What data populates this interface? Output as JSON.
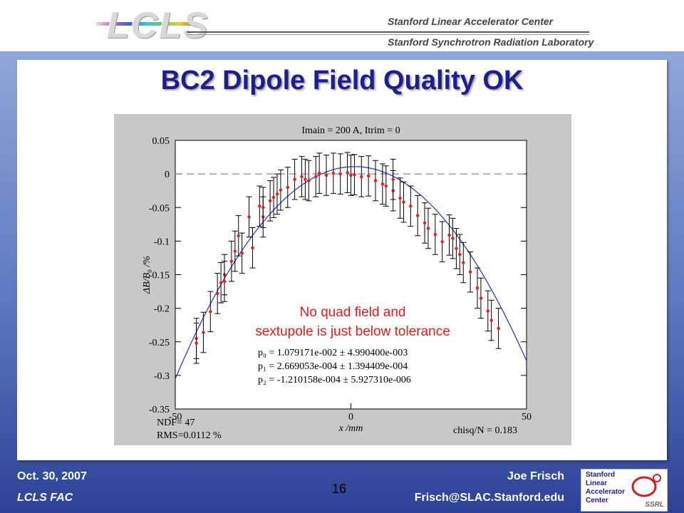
{
  "header": {
    "logo_text": "LCLS",
    "org_line1": "Stanford Linear Accelerator Center",
    "org_line2": "Stanford Synchrotron Radiation Laboratory"
  },
  "slide": {
    "title": "BC2 Dipole Field Quality OK",
    "annotation_line1": "No quad field and",
    "annotation_line2": "sextupole is just below tolerance",
    "fit_p0": "p₀ = 1.079171e-002 ± 4.990400e-003",
    "fit_p1": "p₁ = 2.669053e-004 ± 1.394409e-004",
    "fit_p2": "p₂ = -1.210158e-004 ± 5.927310e-006",
    "ndf": "NDF=   47",
    "rms": "RMS=0.0112 %",
    "chisq": "chisq/N = 0.183"
  },
  "footer": {
    "date": "Oct. 30, 2007",
    "event": "LCLS FAC",
    "author": "Joe Frisch",
    "email": "Frisch@SLAC.Stanford.edu",
    "page": "16"
  },
  "logo_slac": {
    "l1": "Stanford",
    "l2": "Linear",
    "l3": "Accelerator",
    "l4": "Center",
    "ssrl": "SSRL"
  },
  "colors": {
    "title": "#1e1e8c",
    "fit_curve": "#2030c0",
    "points": "#e02020",
    "annotation": "#e02020"
  },
  "chart_data": {
    "type": "scatter",
    "title": "Imain = 200 A, Itrim = 0",
    "xlabel": "x /mm",
    "ylabel": "ΔB/B₀ /%",
    "xlim": [
      -50,
      50
    ],
    "ylim": [
      -0.35,
      0.05
    ],
    "x_ticks": [
      -50,
      0,
      50
    ],
    "y_ticks": [
      0.05,
      0,
      -0.05,
      -0.1,
      -0.15,
      -0.2,
      -0.25,
      -0.3,
      -0.35
    ],
    "x_tick_labels": [
      "-50",
      "0",
      "50"
    ],
    "y_tick_labels": [
      "0.05",
      "0",
      "-0.05",
      "-0.1",
      "-0.15",
      "-0.2",
      "-0.25",
      "-0.3",
      "-0.35"
    ],
    "reference_line_y": 0,
    "error_bar": 0.03,
    "fit": {
      "p0": 0.01079171,
      "p1": 0.0002669053,
      "p2": -0.0001210158
    },
    "x": [
      -44,
      -44,
      -42,
      -40,
      -38,
      -37,
      -36,
      -36,
      -34,
      -33,
      -32,
      -31,
      -29,
      -28,
      -26,
      -25,
      -25,
      -23,
      -22,
      -21,
      -20,
      -18,
      -16,
      -14,
      -13,
      -12,
      -10,
      -9,
      -7,
      -5,
      -3,
      -1,
      0,
      1,
      3,
      5,
      7,
      9,
      10,
      12,
      12,
      14,
      15,
      17,
      19,
      21,
      22,
      24,
      26,
      28,
      29,
      30,
      31,
      32,
      34,
      36,
      37,
      39,
      40,
      42
    ],
    "y": [
      -0.245,
      -0.252,
      -0.236,
      -0.205,
      -0.178,
      -0.162,
      -0.15,
      -0.16,
      -0.13,
      -0.115,
      -0.092,
      -0.118,
      -0.064,
      -0.11,
      -0.048,
      -0.064,
      -0.05,
      -0.04,
      -0.035,
      -0.03,
      -0.024,
      -0.02,
      -0.008,
      -0.004,
      -0.008,
      -0.01,
      -0.004,
      0.001,
      -0.002,
      0.001,
      0,
      0.002,
      -0.002,
      -0.001,
      -0.004,
      -0.003,
      -0.01,
      -0.015,
      -0.018,
      -0.025,
      -0.008,
      -0.036,
      -0.042,
      -0.048,
      -0.062,
      -0.073,
      -0.081,
      -0.09,
      -0.101,
      -0.091,
      -0.096,
      -0.111,
      -0.12,
      -0.132,
      -0.146,
      -0.17,
      -0.185,
      -0.204,
      -0.218,
      -0.23
    ]
  }
}
